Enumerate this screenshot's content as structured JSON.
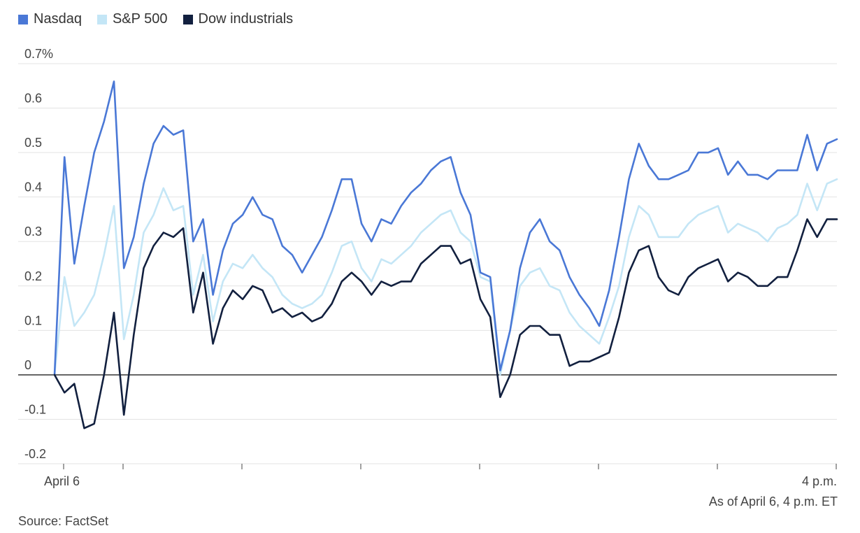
{
  "legend": [
    {
      "name": "Nasdaq",
      "color": "#4a78d6"
    },
    {
      "name": "S&P 500",
      "color": "#c4e6f6"
    },
    {
      "name": "Dow industrials",
      "color": "#12203f"
    }
  ],
  "footer": {
    "as_of": "As of April 6, 4 p.m. ET",
    "source": "Source: FactSet"
  },
  "chart_data": {
    "type": "line",
    "title": "",
    "xlabel": "",
    "ylabel": "",
    "y_unit": "%",
    "ylim": [
      -0.2,
      0.7
    ],
    "y_ticks": [
      {
        "value": 0.7,
        "label": "0.7%"
      },
      {
        "value": 0.6,
        "label": "0.6"
      },
      {
        "value": 0.5,
        "label": "0.5"
      },
      {
        "value": 0.4,
        "label": "0.4"
      },
      {
        "value": 0.3,
        "label": "0.3"
      },
      {
        "value": 0.2,
        "label": "0.2"
      },
      {
        "value": 0.1,
        "label": "0.1"
      },
      {
        "value": 0,
        "label": "0"
      },
      {
        "value": -0.1,
        "label": "-0.1"
      },
      {
        "value": -0.2,
        "label": "-0.2"
      }
    ],
    "x_start_label": "April 6",
    "x_end_label": "4 p.m.",
    "grid": true,
    "legend_position": "top-left",
    "series": [
      {
        "name": "Nasdaq",
        "color": "#4a78d6",
        "values": [
          0,
          0.49,
          0.25,
          0.38,
          0.5,
          0.57,
          0.66,
          0.24,
          0.31,
          0.43,
          0.52,
          0.56,
          0.54,
          0.55,
          0.3,
          0.35,
          0.18,
          0.28,
          0.34,
          0.36,
          0.4,
          0.36,
          0.35,
          0.29,
          0.27,
          0.23,
          0.27,
          0.31,
          0.37,
          0.44,
          0.44,
          0.34,
          0.3,
          0.35,
          0.34,
          0.38,
          0.41,
          0.43,
          0.46,
          0.48,
          0.49,
          0.41,
          0.36,
          0.23,
          0.22,
          0.01,
          0.1,
          0.24,
          0.32,
          0.35,
          0.3,
          0.28,
          0.22,
          0.18,
          0.15,
          0.11,
          0.19,
          0.31,
          0.44,
          0.52,
          0.47,
          0.44,
          0.44,
          0.45,
          0.46,
          0.5,
          0.5,
          0.51,
          0.45,
          0.48,
          0.45,
          0.45,
          0.44,
          0.46,
          0.46,
          0.46,
          0.54,
          0.46,
          0.52,
          0.53
        ]
      },
      {
        "name": "S&P 500",
        "color": "#c4e6f6",
        "values": [
          0,
          0.22,
          0.11,
          0.14,
          0.18,
          0.27,
          0.38,
          0.08,
          0.18,
          0.32,
          0.36,
          0.42,
          0.37,
          0.38,
          0.18,
          0.27,
          0.12,
          0.21,
          0.25,
          0.24,
          0.27,
          0.24,
          0.22,
          0.18,
          0.16,
          0.15,
          0.16,
          0.18,
          0.23,
          0.29,
          0.3,
          0.24,
          0.21,
          0.26,
          0.25,
          0.27,
          0.29,
          0.32,
          0.34,
          0.36,
          0.37,
          0.32,
          0.3,
          0.22,
          0.21,
          0.0,
          0.1,
          0.2,
          0.23,
          0.24,
          0.2,
          0.19,
          0.14,
          0.11,
          0.09,
          0.07,
          0.13,
          0.2,
          0.31,
          0.38,
          0.36,
          0.31,
          0.31,
          0.31,
          0.34,
          0.36,
          0.37,
          0.38,
          0.32,
          0.34,
          0.33,
          0.32,
          0.3,
          0.33,
          0.34,
          0.36,
          0.43,
          0.37,
          0.43,
          0.44
        ]
      },
      {
        "name": "Dow industrials",
        "color": "#12203f",
        "values": [
          0,
          -0.04,
          -0.02,
          -0.12,
          -0.11,
          0.0,
          0.14,
          -0.09,
          0.09,
          0.24,
          0.29,
          0.32,
          0.31,
          0.33,
          0.14,
          0.23,
          0.07,
          0.15,
          0.19,
          0.17,
          0.2,
          0.19,
          0.14,
          0.15,
          0.13,
          0.14,
          0.12,
          0.13,
          0.16,
          0.21,
          0.23,
          0.21,
          0.18,
          0.21,
          0.2,
          0.21,
          0.21,
          0.25,
          0.27,
          0.29,
          0.29,
          0.25,
          0.26,
          0.17,
          0.13,
          -0.05,
          0.0,
          0.09,
          0.11,
          0.11,
          0.09,
          0.09,
          0.02,
          0.03,
          0.03,
          0.04,
          0.05,
          0.13,
          0.23,
          0.28,
          0.29,
          0.22,
          0.19,
          0.18,
          0.22,
          0.24,
          0.25,
          0.26,
          0.21,
          0.23,
          0.22,
          0.2,
          0.2,
          0.22,
          0.22,
          0.28,
          0.35,
          0.31,
          0.35,
          0.35
        ]
      }
    ]
  }
}
